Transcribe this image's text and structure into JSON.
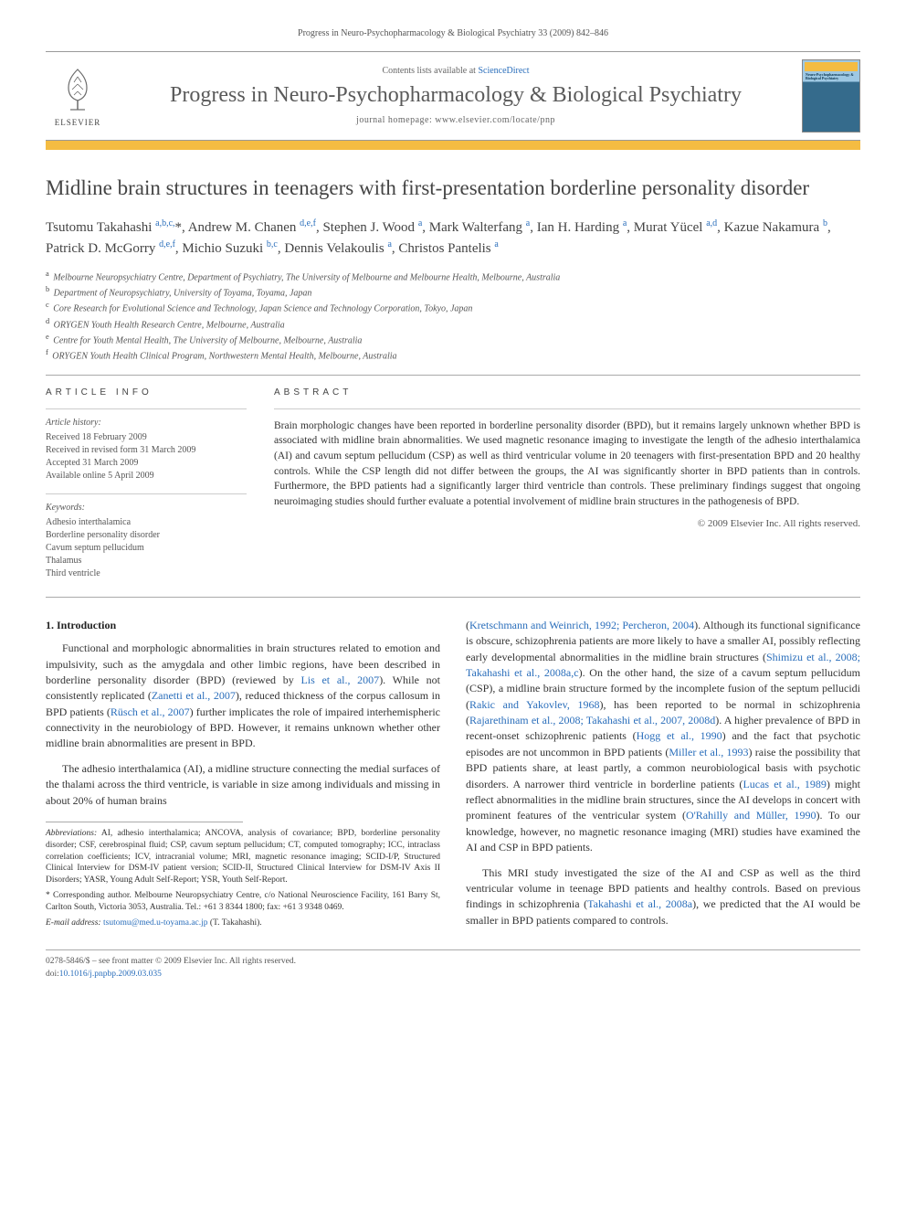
{
  "running_header": "Progress in Neuro-Psychopharmacology & Biological Psychiatry 33 (2009) 842–846",
  "header": {
    "publisher": "ELSEVIER",
    "contents_prefix": "Contents lists available at ",
    "contents_link": "ScienceDirect",
    "journal_name": "Progress in Neuro-Psychopharmacology & Biological Psychiatry",
    "homepage_label": "journal homepage: www.elsevier.com/locate/pnp",
    "cover_caption": "Neuro-Psychopharmacology & Biological Psychiatry"
  },
  "article": {
    "title": "Midline brain structures in teenagers with first-presentation borderline personality disorder",
    "authors_html": "Tsutomu Takahashi <sup>a,b,c,</sup><span class='star'>*</span>, Andrew M. Chanen <sup>d,e,f</sup>, Stephen J. Wood <sup>a</sup>, Mark Walterfang <sup>a</sup>, Ian H. Harding <sup>a</sup>, Murat Yücel <sup>a,d</sup>, Kazue Nakamura <sup>b</sup>, Patrick D. McGorry <sup>d,e,f</sup>, Michio Suzuki <sup>b,c</sup>, Dennis Velakoulis <sup>a</sup>, Christos Pantelis <sup>a</sup>",
    "affiliations": [
      {
        "key": "a",
        "text": "Melbourne Neuropsychiatry Centre, Department of Psychiatry, The University of Melbourne and Melbourne Health, Melbourne, Australia"
      },
      {
        "key": "b",
        "text": "Department of Neuropsychiatry, University of Toyama, Toyama, Japan"
      },
      {
        "key": "c",
        "text": "Core Research for Evolutional Science and Technology, Japan Science and Technology Corporation, Tokyo, Japan"
      },
      {
        "key": "d",
        "text": "ORYGEN Youth Health Research Centre, Melbourne, Australia"
      },
      {
        "key": "e",
        "text": "Centre for Youth Mental Health, The University of Melbourne, Melbourne, Australia"
      },
      {
        "key": "f",
        "text": "ORYGEN Youth Health Clinical Program, Northwestern Mental Health, Melbourne, Australia"
      }
    ]
  },
  "info": {
    "label": "ARTICLE INFO",
    "history_label": "Article history:",
    "history": [
      "Received 18 February 2009",
      "Received in revised form 31 March 2009",
      "Accepted 31 March 2009",
      "Available online 5 April 2009"
    ],
    "keywords_label": "Keywords:",
    "keywords": [
      "Adhesio interthalamica",
      "Borderline personality disorder",
      "Cavum septum pellucidum",
      "Thalamus",
      "Third ventricle"
    ]
  },
  "abstract": {
    "label": "ABSTRACT",
    "text": "Brain morphologic changes have been reported in borderline personality disorder (BPD), but it remains largely unknown whether BPD is associated with midline brain abnormalities. We used magnetic resonance imaging to investigate the length of the adhesio interthalamica (AI) and cavum septum pellucidum (CSP) as well as third ventricular volume in 20 teenagers with first-presentation BPD and 20 healthy controls. While the CSP length did not differ between the groups, the AI was significantly shorter in BPD patients than in controls. Furthermore, the BPD patients had a significantly larger third ventricle than controls. These preliminary findings suggest that ongoing neuroimaging studies should further evaluate a potential involvement of midline brain structures in the pathogenesis of BPD.",
    "copyright": "© 2009 Elsevier Inc. All rights reserved."
  },
  "body": {
    "heading1": "1. Introduction",
    "p1": "Functional and morphologic abnormalities in brain structures related to emotion and impulsivity, such as the amygdala and other limbic regions, have been described in borderline personality disorder (BPD) (reviewed by <a>Lis et al., 2007</a>). While not consistently replicated (<a>Zanetti et al., 2007</a>), reduced thickness of the corpus callosum in BPD patients (<a>Rüsch et al., 2007</a>) further implicates the role of impaired interhemispheric connectivity in the neurobiology of BPD. However, it remains unknown whether other midline brain abnormalities are present in BPD.",
    "p2": "The adhesio interthalamica (AI), a midline structure connecting the medial surfaces of the thalami across the third ventricle, is variable in size among individuals and missing in about 20% of human brains",
    "p3": "(<a>Kretschmann and Weinrich, 1992; Percheron, 2004</a>). Although its functional significance is obscure, schizophrenia patients are more likely to have a smaller AI, possibly reflecting early developmental abnormalities in the midline brain structures (<a>Shimizu et al., 2008; Takahashi et al., 2008a,c</a>). On the other hand, the size of a cavum septum pellucidum (CSP), a midline brain structure formed by the incomplete fusion of the septum pellucidi (<a>Rakic and Yakovlev, 1968</a>), has been reported to be normal in schizophrenia (<a>Rajarethinam et al., 2008; Takahashi et al., 2007, 2008d</a>). A higher prevalence of BPD in recent-onset schizophrenic patients (<a>Hogg et al., 1990</a>) and the fact that psychotic episodes are not uncommon in BPD patients (<a>Miller et al., 1993</a>) raise the possibility that BPD patients share, at least partly, a common neurobiological basis with psychotic disorders. A narrower third ventricle in borderline patients (<a>Lucas et al., 1989</a>) might reflect abnormalities in the midline brain structures, since the AI develops in concert with prominent features of the ventricular system (<a>O'Rahilly and Müller, 1990</a>). To our knowledge, however, no magnetic resonance imaging (MRI) studies have examined the AI and CSP in BPD patients.",
    "p4": "This MRI study investigated the size of the AI and CSP as well as the third ventricular volume in teenage BPD patients and healthy controls. Based on previous findings in schizophrenia (<a>Takahashi et al., 2008a</a>), we predicted that the AI would be smaller in BPD patients compared to controls."
  },
  "footnotes": {
    "abbrev_label": "Abbreviations:",
    "abbrev": "AI, adhesio interthalamica; ANCOVA, analysis of covariance; BPD, borderline personality disorder; CSF, cerebrospinal fluid; CSP, cavum septum pellucidum; CT, computed tomography; ICC, intraclass correlation coefficients; ICV, intracranial volume; MRI, magnetic resonance imaging; SCID-I/P, Structured Clinical Interview for DSM-IV patient version; SCID-II, Structured Clinical Interview for DSM-IV Axis II Disorders; YASR, Young Adult Self-Report; YSR, Youth Self-Report.",
    "corr_label": "* Corresponding author.",
    "corr": "Melbourne Neuropsychiatry Centre, c/o National Neuroscience Facility, 161 Barry St, Carlton South, Victoria 3053, Australia. Tel.: +61 3 8344 1800; fax: +61 3 9348 0469.",
    "email_label": "E-mail address:",
    "email": "tsutomu@med.u-toyama.ac.jp",
    "email_suffix": "(T. Takahashi)."
  },
  "bottom": {
    "issn": "0278-5846/$ – see front matter © 2009 Elsevier Inc. All rights reserved.",
    "doi_label": "doi:",
    "doi": "10.1016/j.pnpbp.2009.03.035"
  },
  "colors": {
    "accent_orange": "#f4bc42",
    "link_blue": "#2a6ebb",
    "text": "#333333",
    "muted": "#555555",
    "rule": "#aaaaaa"
  }
}
